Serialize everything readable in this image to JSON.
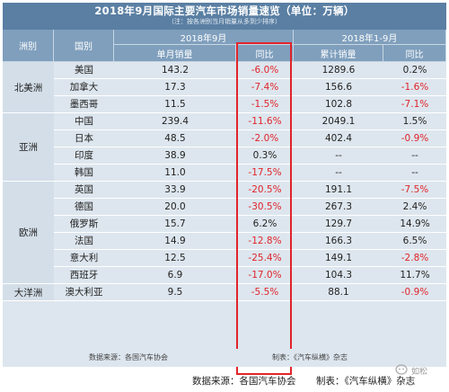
{
  "title": "2018年9月国际主要汽车市场销量速览（单位：万辆）",
  "note": "（注：按各洲别当月销量从多到少排序）",
  "headers": {
    "region": "洲别",
    "country": "国别",
    "period_month": "2018年9月",
    "period_ytd": "2018年1-9月",
    "monthly_sales": "单月销量",
    "yoy": "同比",
    "cumulative_sales": "累计销量",
    "yoy2": "同比"
  },
  "regions": [
    "北美洲",
    "亚洲",
    "欧洲",
    "大洋洲"
  ],
  "rows": [
    {
      "country": "美国",
      "month": "143.2",
      "yoy": "-6.0%",
      "ytd": "1289.6",
      "ytd_yoy": "0.2%"
    },
    {
      "country": "加拿大",
      "month": "17.3",
      "yoy": "-7.4%",
      "ytd": "156.6",
      "ytd_yoy": "-1.6%"
    },
    {
      "country": "墨西哥",
      "month": "11.5",
      "yoy": "-1.5%",
      "ytd": "102.8",
      "ytd_yoy": "-7.1%"
    },
    {
      "country": "中国",
      "month": "239.4",
      "yoy": "-11.6%",
      "ytd": "2049.1",
      "ytd_yoy": "1.5%"
    },
    {
      "country": "日本",
      "month": "48.5",
      "yoy": "-2.0%",
      "ytd": "402.4",
      "ytd_yoy": "-0.9%"
    },
    {
      "country": "印度",
      "month": "38.9",
      "yoy": "0.3%",
      "ytd": "--",
      "ytd_yoy": "--"
    },
    {
      "country": "韩国",
      "month": "11.0",
      "yoy": "-17.5%",
      "ytd": "--",
      "ytd_yoy": "--"
    },
    {
      "country": "英国",
      "month": "33.9",
      "yoy": "-20.5%",
      "ytd": "191.1",
      "ytd_yoy": "-7.5%"
    },
    {
      "country": "德国",
      "month": "20.0",
      "yoy": "-30.5%",
      "ytd": "267.3",
      "ytd_yoy": "2.4%"
    },
    {
      "country": "俄罗斯",
      "month": "15.7",
      "yoy": "6.2%",
      "ytd": "129.7",
      "ytd_yoy": "14.9%"
    },
    {
      "country": "法国",
      "month": "14.9",
      "yoy": "-12.8%",
      "ytd": "166.3",
      "ytd_yoy": "6.5%"
    },
    {
      "country": "意大利",
      "month": "12.5",
      "yoy": "-25.4%",
      "ytd": "149.1",
      "ytd_yoy": "-2.8%"
    },
    {
      "country": "西班牙",
      "month": "6.9",
      "yoy": "-17.0%",
      "ytd": "104.3",
      "ytd_yoy": "11.7%"
    },
    {
      "country": "澳大利亚",
      "month": "9.5",
      "yoy": "-5.5%",
      "ytd": "88.1",
      "ytd_yoy": "-0.9%"
    }
  ],
  "footer_inner": {
    "source": "数据来源：各国汽车协会",
    "maker": "制表：《汽车纵横》杂志"
  },
  "caption": {
    "source": "数据来源：各国汽车协会",
    "maker": "制表：《汽车纵横》杂志"
  },
  "watermark": {
    "text": "如松"
  },
  "colors": {
    "header_blue": "#5a7fa3",
    "sub_header_blue": "#7f9fbd",
    "row_bg": "#dde6ee",
    "negative_red": "#e0242b",
    "highlight_box": "#e0242b"
  }
}
